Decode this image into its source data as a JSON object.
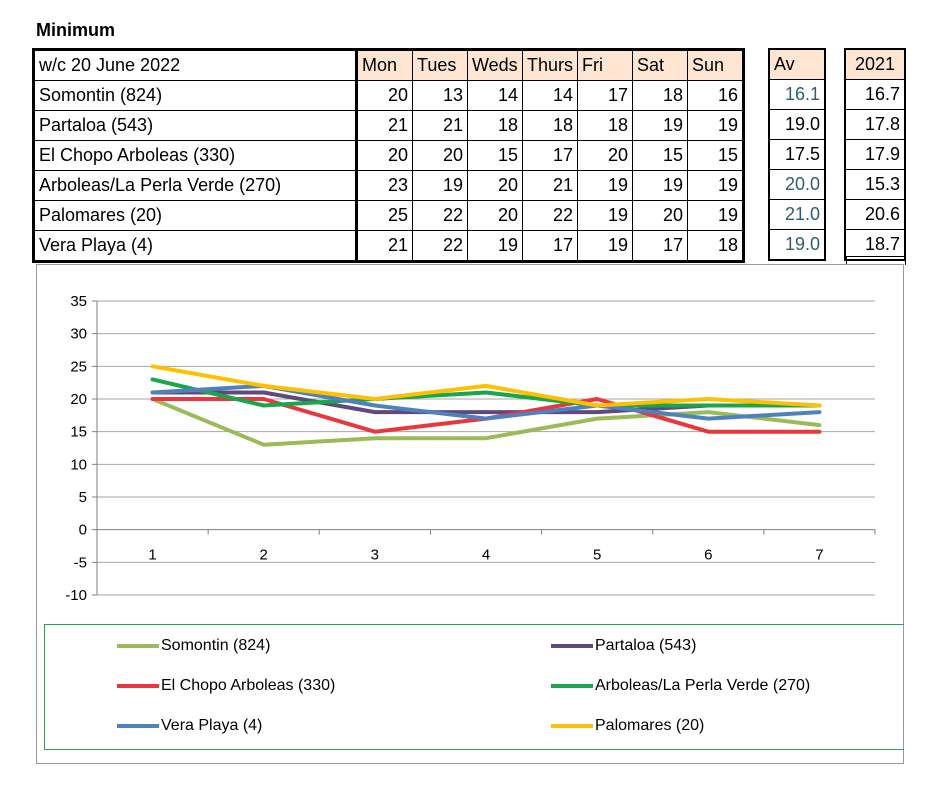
{
  "title": "Minimum",
  "table": {
    "header_label": "w/c 20 June 2022",
    "days": [
      "Mon",
      "Tues",
      "Weds",
      "Thurs",
      "Fri",
      "Sat",
      "Sun"
    ],
    "rows": [
      {
        "name": "Somontin (824)",
        "values": [
          "20",
          "13",
          "14",
          "14",
          "17",
          "18",
          "16"
        ],
        "av": "16.1",
        "y2021": "16.7"
      },
      {
        "name": "Partaloa (543)",
        "values": [
          "21",
          "21",
          "18",
          "18",
          "18",
          "19",
          "19"
        ],
        "av": "19.0",
        "y2021": "17.8"
      },
      {
        "name": "El Chopo Arboleas (330)",
        "values": [
          "20",
          "20",
          "15",
          "17",
          "20",
          "15",
          "15"
        ],
        "av": "17.5",
        "y2021": "17.9"
      },
      {
        "name": "Arboleas/La Perla Verde (270)",
        "values": [
          "23",
          "19",
          "20",
          "21",
          "19",
          "19",
          "19"
        ],
        "av": "20.0",
        "y2021": "15.3"
      },
      {
        "name": "Palomares (20)",
        "values": [
          "25",
          "22",
          "20",
          "22",
          "19",
          "20",
          "19"
        ],
        "av": "21.0",
        "y2021": "20.6"
      },
      {
        "name": "Vera Playa (4)",
        "values": [
          "21",
          "22",
          "19",
          "17",
          "19",
          "17",
          "18"
        ],
        "av": "19.0",
        "y2021": "18.7"
      }
    ],
    "av_header": "Av",
    "y2021_header": "2021"
  },
  "chart_data": {
    "type": "line",
    "x": [
      1,
      2,
      3,
      4,
      5,
      6,
      7
    ],
    "ylim": [
      -10,
      35
    ],
    "yticks": [
      -10,
      -5,
      0,
      5,
      10,
      15,
      20,
      25,
      30,
      35
    ],
    "grid": true,
    "legend_position": "bottom",
    "series": [
      {
        "name": "Somontin (824)",
        "color": "#9bbb59",
        "values": [
          20,
          13,
          14,
          14,
          17,
          18,
          16
        ]
      },
      {
        "name": "Partaloa (543)",
        "color": "#604a7b",
        "values": [
          21,
          21,
          18,
          18,
          18,
          19,
          19
        ]
      },
      {
        "name": "El Chopo Arboleas (330)",
        "color": "#e8383d",
        "values": [
          20,
          20,
          15,
          17,
          20,
          15,
          15
        ]
      },
      {
        "name": "Arboleas/La Perla Verde (270)",
        "color": "#1aa64a",
        "values": [
          23,
          19,
          20,
          21,
          19,
          19,
          19
        ]
      },
      {
        "name": "Vera Playa (4)",
        "color": "#4f81bd",
        "values": [
          21,
          22,
          19,
          17,
          19,
          17,
          18
        ]
      },
      {
        "name": "Palomares (20)",
        "color": "#ffc000",
        "values": [
          25,
          22,
          20,
          22,
          19,
          20,
          19
        ]
      }
    ]
  }
}
